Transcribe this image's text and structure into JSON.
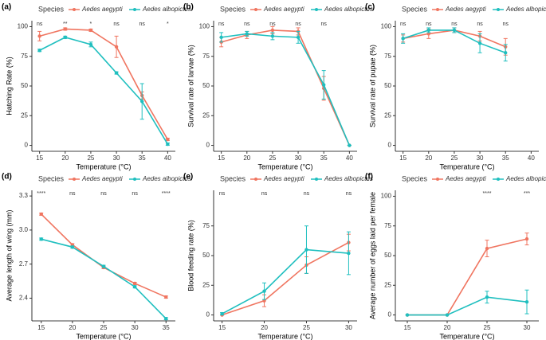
{
  "chart_data": [
    {
      "type": "line",
      "label": "(a)",
      "legend_title": "Species",
      "xlabel": "Temperature (°C)",
      "ylabel": "Hatching Rate (%)",
      "x": [
        15,
        20,
        25,
        30,
        35,
        40
      ],
      "xlim": [
        13.5,
        41.5
      ],
      "xticks": [
        15,
        20,
        25,
        30,
        35,
        40
      ],
      "ylim": [
        -5,
        105
      ],
      "yticks": [
        0,
        25,
        50,
        75,
        100
      ],
      "series": [
        {
          "name": "Aedes aegypti",
          "color": "#f07560",
          "values": [
            92,
            98,
            97,
            83,
            42,
            5
          ],
          "errors": [
            4,
            1,
            1,
            9,
            3,
            1
          ]
        },
        {
          "name": "Aedes albopictus",
          "color": "#1fbfbf",
          "values": [
            80,
            91,
            85,
            61,
            37,
            1
          ],
          "errors": [
            1,
            1,
            2,
            1,
            15,
            1
          ]
        }
      ],
      "significance": [
        "ns",
        "**",
        "*",
        "ns",
        "ns",
        "*"
      ]
    },
    {
      "type": "line",
      "label": "(b)",
      "legend_title": "Species",
      "xlabel": "Temperature (°C)",
      "ylabel": "Survival rate of larvae (%)",
      "x": [
        15,
        20,
        25,
        30,
        35,
        40
      ],
      "xlim": [
        13.5,
        41.5
      ],
      "xticks": [
        15,
        20,
        25,
        30,
        35,
        40
      ],
      "ylim": [
        -5,
        105
      ],
      "yticks": [
        0,
        25,
        50,
        75,
        100
      ],
      "series": [
        {
          "name": "Aedes aegypti",
          "color": "#f07560",
          "values": [
            87,
            93,
            97,
            96,
            48,
            0
          ],
          "errors": [
            4,
            3,
            3,
            3,
            10,
            0
          ]
        },
        {
          "name": "Aedes albopictus",
          "color": "#1fbfbf",
          "values": [
            91,
            94,
            92,
            91,
            51,
            0
          ],
          "errors": [
            4,
            2,
            3,
            5,
            12,
            0
          ]
        }
      ],
      "significance": [
        "ns",
        "ns",
        "ns",
        "ns",
        "ns",
        null
      ]
    },
    {
      "type": "line",
      "label": "(c)",
      "legend_title": "Species",
      "xlabel": "Temperature (°C)",
      "ylabel": "Survival rate of pupae (%)",
      "x": [
        15,
        20,
        25,
        30,
        35
      ],
      "xlim": [
        13.5,
        41.5
      ],
      "xticks": [
        15,
        20,
        25,
        30,
        35,
        40
      ],
      "ylim": [
        -5,
        105
      ],
      "yticks": [
        0,
        25,
        50,
        75,
        100
      ],
      "series": [
        {
          "name": "Aedes aegypti",
          "color": "#f07560",
          "values": [
            90,
            94,
            97,
            92,
            83
          ],
          "errors": [
            3,
            4,
            2,
            4,
            7
          ]
        },
        {
          "name": "Aedes albopictus",
          "color": "#1fbfbf",
          "values": [
            90,
            97,
            97,
            86,
            78
          ],
          "errors": [
            4,
            2,
            2,
            8,
            7
          ]
        }
      ],
      "significance": [
        "ns",
        "ns",
        "ns",
        "ns",
        "ns"
      ]
    },
    {
      "type": "line",
      "label": "(d)",
      "legend_title": "Species",
      "xlabel": "Temperature (°C)",
      "ylabel": "Average length of wing (mm)",
      "x": [
        15,
        20,
        25,
        30,
        35
      ],
      "xlim": [
        13.5,
        36.5
      ],
      "xticks": [
        15,
        20,
        25,
        30,
        35
      ],
      "ylim": [
        2.2,
        3.35
      ],
      "yticks": [
        2.4,
        2.7,
        {
          "value": 3,
          "label": "3.0"
        },
        3.3
      ],
      "series": [
        {
          "name": "Aedes aegypti",
          "color": "#f07560",
          "values": [
            3.14,
            2.87,
            2.67,
            2.53,
            2.41
          ],
          "errors": [
            0.01,
            0.01,
            0.01,
            0.01,
            0.01
          ]
        },
        {
          "name": "Aedes albopictus",
          "color": "#1fbfbf",
          "values": [
            2.92,
            2.85,
            2.68,
            2.5,
            2.22
          ],
          "errors": [
            0.01,
            0.01,
            0.01,
            0.01,
            0.01
          ]
        }
      ],
      "significance": [
        "****",
        "ns",
        "ns",
        "ns",
        "****"
      ]
    },
    {
      "type": "line",
      "label": "(e)",
      "legend_title": "Species",
      "xlabel": "Temperature (°C)",
      "ylabel": "Blood feeding rate (%)",
      "x": [
        15,
        20,
        25,
        30
      ],
      "xlim": [
        14,
        31
      ],
      "xticks": [
        15,
        20,
        25,
        30
      ],
      "ylim": [
        -5,
        105
      ],
      "yticks": [
        0,
        25,
        50,
        75
      ],
      "series": [
        {
          "name": "Aedes aegypti",
          "color": "#f07560",
          "values": [
            0,
            12,
            42,
            61
          ],
          "errors": [
            0,
            5,
            7,
            7
          ]
        },
        {
          "name": "Aedes albopictus",
          "color": "#1fbfbf",
          "values": [
            1,
            20,
            55,
            52
          ],
          "errors": [
            1,
            7,
            20,
            18
          ]
        }
      ],
      "significance": [
        "ns",
        "ns",
        "ns",
        "ns"
      ]
    },
    {
      "type": "line",
      "label": "(f)",
      "legend_title": "Species",
      "xlabel": "Temperature (°C)",
      "ylabel": "Average number of eggs laid per female",
      "x": [
        15,
        20,
        25,
        30
      ],
      "xlim": [
        13.5,
        31.5
      ],
      "xticks": [
        15,
        20,
        25,
        30
      ],
      "ylim": [
        -5,
        105
      ],
      "yticks": [
        0,
        25,
        50,
        75,
        100
      ],
      "series": [
        {
          "name": "Aedes aegypti",
          "color": "#f07560",
          "values": [
            0,
            0,
            56,
            64
          ],
          "errors": [
            0,
            0,
            7,
            5
          ]
        },
        {
          "name": "Aedes albopictus",
          "color": "#1fbfbf",
          "values": [
            0,
            0,
            15,
            11
          ],
          "errors": [
            0,
            0,
            5,
            10
          ]
        }
      ],
      "significance": [
        null,
        null,
        "****",
        "***"
      ]
    }
  ]
}
